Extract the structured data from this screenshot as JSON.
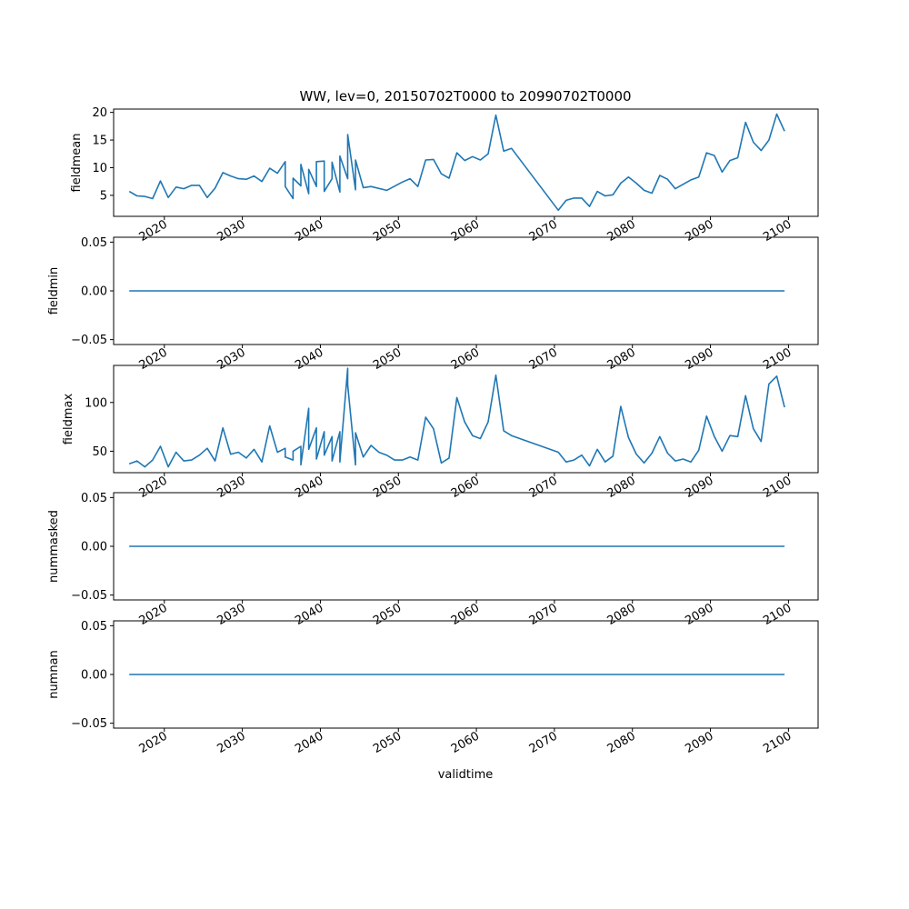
{
  "figure": {
    "title": "WW, lev=0, 20150702T0000 to 20990702T0000",
    "xlabel": "validtime",
    "line_color": "#1f77b4"
  },
  "chart_data": [
    {
      "type": "line",
      "ylabel": "fieldmean",
      "xlim": [
        2013.5,
        2103.8
      ],
      "ylim": [
        1.2,
        20.6
      ],
      "yticks": [
        "5",
        "10",
        "15",
        "20"
      ],
      "yticks_values": [
        5,
        10,
        15,
        20
      ],
      "xticks": [
        "2020",
        "2030",
        "2040",
        "2050",
        "2060",
        "2070",
        "2080",
        "2090",
        "2100"
      ],
      "xticks_values": [
        2020,
        2030,
        2040,
        2050,
        2060,
        2070,
        2080,
        2090,
        2100
      ],
      "series": [
        {
          "x": [
            2015.5,
            2016.5,
            2017.5,
            2018.5,
            2019.5,
            2020.5,
            2021.5,
            2022.5,
            2023.5,
            2024.5,
            2025.5,
            2026.5,
            2027.5,
            2028.5,
            2029.5,
            2030.5,
            2031.5,
            2032.5,
            2033.5,
            2034.5,
            2035.5,
            2035.5,
            2036.5,
            2036.5,
            2037.5,
            2037.5,
            2038.5,
            2038.5,
            2039.5,
            2039.5,
            2040.5,
            2040.5,
            2041.5,
            2041.5,
            2042.5,
            2042.5,
            2043.5,
            2043.5,
            2044.5,
            2044.5,
            2045.5,
            2046.5,
            2048.5,
            2050.5,
            2051.5,
            2052.5,
            2053.5,
            2054.5,
            2055.5,
            2056.5,
            2057.5,
            2058.5,
            2059.5,
            2060.5,
            2061.5,
            2062.5,
            2063.5,
            2064.5,
            2070.5,
            2071.5,
            2072.5,
            2073.5,
            2074.5,
            2075.5,
            2076.5,
            2077.5,
            2078.5,
            2079.5,
            2080.5,
            2081.5,
            2082.5,
            2083.5,
            2084.5,
            2085.5,
            2087.5,
            2088.5,
            2089.5,
            2090.5,
            2091.5,
            2092.5,
            2093.5,
            2094.5,
            2095.5,
            2096.5,
            2097.5,
            2098.5,
            2099.5
          ],
          "y": [
            5.7,
            4.9,
            4.8,
            4.4,
            7.6,
            4.6,
            6.5,
            6.2,
            6.8,
            6.8,
            4.6,
            6.3,
            9.1,
            8.5,
            8.0,
            7.9,
            8.5,
            7.5,
            9.9,
            9.0,
            11.1,
            6.6,
            4.4,
            8.1,
            6.7,
            10.6,
            5.3,
            9.7,
            6.6,
            11.1,
            11.2,
            5.7,
            8.0,
            11.0,
            5.6,
            12.1,
            8.0,
            16.0,
            6.0,
            11.4,
            6.4,
            6.6,
            5.9,
            7.4,
            8.0,
            6.6,
            11.4,
            11.5,
            8.9,
            8.1,
            12.7,
            11.3,
            12.0,
            11.4,
            12.5,
            19.5,
            13.0,
            13.5,
            2.3,
            4.1,
            4.5,
            4.5,
            3.0,
            5.7,
            4.9,
            5.1,
            7.2,
            8.3,
            7.2,
            5.9,
            5.4,
            8.6,
            7.9,
            6.2,
            7.8,
            8.3,
            12.7,
            12.2,
            9.2,
            11.3,
            11.8,
            18.2,
            14.6,
            13.1,
            15.0,
            19.7,
            16.6
          ]
        }
      ]
    },
    {
      "type": "line",
      "ylabel": "fieldmin",
      "xlim": [
        2013.5,
        2103.8
      ],
      "ylim": [
        -0.055,
        0.055
      ],
      "yticks": [
        "−0.05",
        "0.00",
        "0.05"
      ],
      "yticks_values": [
        -0.05,
        0.0,
        0.05
      ],
      "xticks": [
        "2020",
        "2030",
        "2040",
        "2050",
        "2060",
        "2070",
        "2080",
        "2090",
        "2100"
      ],
      "xticks_values": [
        2020,
        2030,
        2040,
        2050,
        2060,
        2070,
        2080,
        2090,
        2100
      ],
      "series": [
        {
          "x": [
            2015.5,
            2099.5
          ],
          "y": [
            0,
            0
          ]
        }
      ]
    },
    {
      "type": "line",
      "ylabel": "fieldmax",
      "xlim": [
        2013.5,
        2103.8
      ],
      "ylim": [
        28,
        138
      ],
      "yticks": [
        "50",
        "100"
      ],
      "yticks_values": [
        50,
        100
      ],
      "xticks": [
        "2020",
        "2030",
        "2040",
        "2050",
        "2060",
        "2070",
        "2080",
        "2090",
        "2100"
      ],
      "xticks_values": [
        2020,
        2030,
        2040,
        2050,
        2060,
        2070,
        2080,
        2090,
        2100
      ],
      "series": [
        {
          "x": [
            2015.5,
            2016.5,
            2017.5,
            2018.5,
            2019.5,
            2020.5,
            2021.5,
            2022.5,
            2023.5,
            2024.5,
            2025.5,
            2026.5,
            2027.5,
            2028.5,
            2029.5,
            2030.5,
            2031.5,
            2032.5,
            2033.5,
            2034.5,
            2035.5,
            2035.5,
            2036.5,
            2036.5,
            2037.5,
            2037.5,
            2038.5,
            2038.5,
            2039.5,
            2039.5,
            2040.5,
            2040.5,
            2041.5,
            2041.5,
            2042.5,
            2042.5,
            2043.5,
            2043.5,
            2044.5,
            2044.5,
            2045.5,
            2046.5,
            2047.5,
            2048.5,
            2049.5,
            2050.5,
            2051.5,
            2052.5,
            2053.5,
            2054.5,
            2055.5,
            2056.5,
            2057.5,
            2058.5,
            2059.5,
            2060.5,
            2061.5,
            2062.5,
            2063.5,
            2064.5,
            2070.5,
            2071.5,
            2072.5,
            2073.5,
            2074.5,
            2075.5,
            2076.5,
            2077.5,
            2078.5,
            2079.5,
            2080.5,
            2081.5,
            2082.5,
            2083.5,
            2084.5,
            2085.5,
            2086.5,
            2087.5,
            2088.5,
            2089.5,
            2090.5,
            2091.5,
            2092.5,
            2093.5,
            2094.5,
            2095.5,
            2096.5,
            2097.5,
            2098.5,
            2099.5
          ],
          "y": [
            37,
            40,
            34,
            41,
            55,
            34,
            49,
            40,
            41,
            46,
            53,
            40,
            74,
            47,
            49,
            43,
            52,
            39,
            76,
            49,
            53,
            44,
            41,
            50,
            55,
            36,
            94,
            52,
            74,
            42,
            70,
            46,
            65,
            40,
            70,
            39,
            135,
            118,
            36,
            69,
            44,
            56,
            49,
            46,
            41,
            41,
            44,
            41,
            85,
            73,
            38,
            43,
            105,
            80,
            66,
            63,
            80,
            128,
            71,
            66,
            49,
            39,
            41,
            46,
            35,
            52,
            39,
            45,
            96,
            64,
            47,
            38,
            48,
            65,
            48,
            40,
            42,
            39,
            51,
            86,
            65,
            50,
            66,
            65,
            107,
            73,
            60,
            119,
            127,
            95
          ]
        }
      ]
    },
    {
      "type": "line",
      "ylabel": "nummasked",
      "xlim": [
        2013.5,
        2103.8
      ],
      "ylim": [
        -0.055,
        0.055
      ],
      "yticks": [
        "−0.05",
        "0.00",
        "0.05"
      ],
      "yticks_values": [
        -0.05,
        0.0,
        0.05
      ],
      "xticks": [
        "2020",
        "2030",
        "2040",
        "2050",
        "2060",
        "2070",
        "2080",
        "2090",
        "2100"
      ],
      "xticks_values": [
        2020,
        2030,
        2040,
        2050,
        2060,
        2070,
        2080,
        2090,
        2100
      ],
      "series": [
        {
          "x": [
            2015.5,
            2099.5
          ],
          "y": [
            0,
            0
          ]
        }
      ]
    },
    {
      "type": "line",
      "ylabel": "numnan",
      "xlim": [
        2013.5,
        2103.8
      ],
      "ylim": [
        -0.055,
        0.055
      ],
      "yticks": [
        "−0.05",
        "0.00",
        "0.05"
      ],
      "yticks_values": [
        -0.05,
        0.0,
        0.05
      ],
      "xticks": [
        "2020",
        "2030",
        "2040",
        "2050",
        "2060",
        "2070",
        "2080",
        "2090",
        "2100"
      ],
      "xticks_values": [
        2020,
        2030,
        2040,
        2050,
        2060,
        2070,
        2080,
        2090,
        2100
      ],
      "series": [
        {
          "x": [
            2015.5,
            2099.5
          ],
          "y": [
            0,
            0
          ]
        }
      ]
    }
  ]
}
